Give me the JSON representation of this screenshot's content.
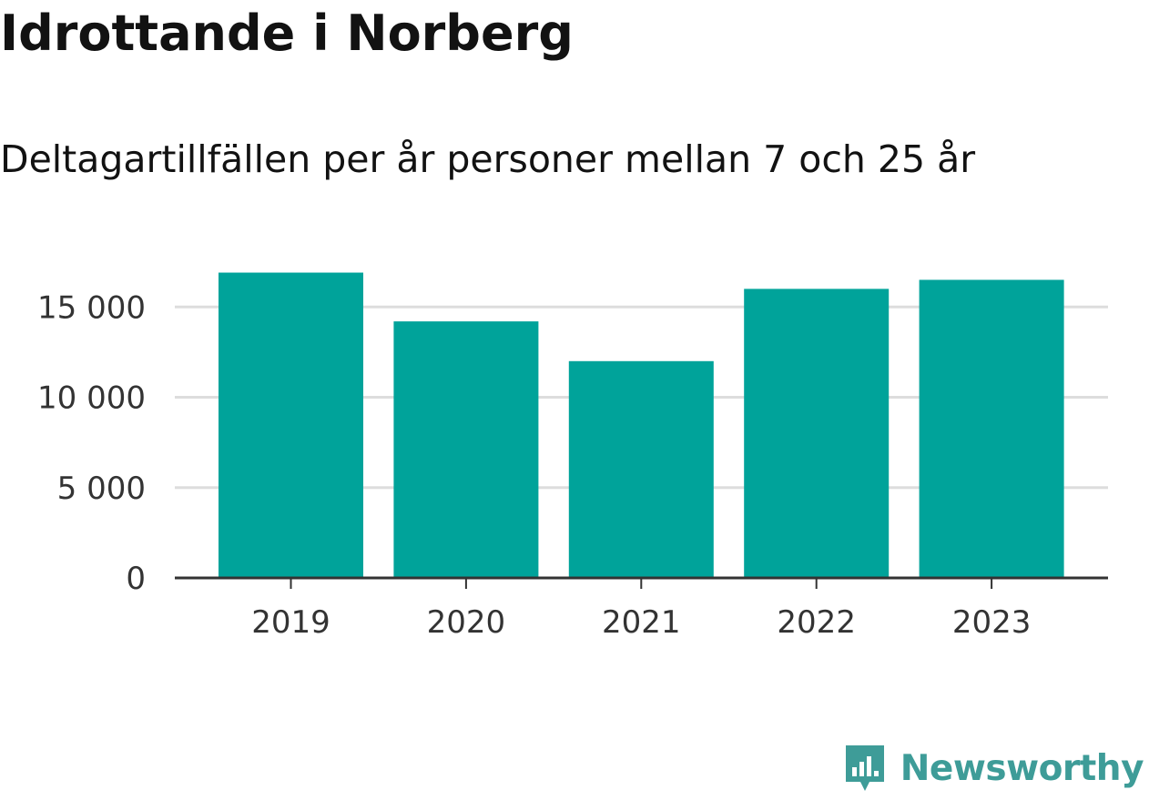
{
  "title": "Idrottande i Norberg",
  "subtitle": "Deltagartillfällen per år personer mellan 7 och 25 år",
  "brand": {
    "name": "Newsworthy",
    "icon": "newsworthy-logo-icon",
    "color": "#3e9c98"
  },
  "colors": {
    "bar": "#00a39a",
    "grid": "#dddddd",
    "axis": "#333333"
  },
  "chart_data": {
    "type": "bar",
    "categories": [
      "2019",
      "2020",
      "2021",
      "2022",
      "2023"
    ],
    "values": [
      16900,
      14200,
      12000,
      16000,
      16500
    ],
    "yticks": [
      0,
      5000,
      10000,
      15000
    ],
    "ytick_labels": [
      "0",
      "5 000",
      "10 000",
      "15 000"
    ],
    "ylim": [
      0,
      17000
    ],
    "grid": true,
    "legend": "none"
  }
}
